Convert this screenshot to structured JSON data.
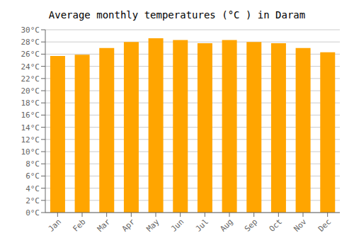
{
  "chart_data": {
    "type": "bar",
    "title": "Average monthly temperatures (°C ) in Daram",
    "categories": [
      "Jan",
      "Feb",
      "Mar",
      "Apr",
      "May",
      "Jun",
      "Jul",
      "Aug",
      "Sep",
      "Oct",
      "Nov",
      "Dec"
    ],
    "values": [
      25.7,
      25.9,
      27.0,
      28.0,
      28.6,
      28.3,
      27.8,
      28.3,
      28.0,
      27.8,
      27.0,
      26.3
    ],
    "color": "#FFA500",
    "ylim": [
      0,
      30
    ],
    "yticks": [
      {
        "value": 0,
        "label": "0°C"
      },
      {
        "value": 2,
        "label": "2°C"
      },
      {
        "value": 4,
        "label": "4°C"
      },
      {
        "value": 6,
        "label": "6°C"
      },
      {
        "value": 8,
        "label": "8°C"
      },
      {
        "value": 10,
        "label": "10°C"
      },
      {
        "value": 12,
        "label": "12°C"
      },
      {
        "value": 14,
        "label": "14°C"
      },
      {
        "value": 16,
        "label": "16°C"
      },
      {
        "value": 18,
        "label": "18°C"
      },
      {
        "value": 20,
        "label": "20°C"
      },
      {
        "value": 22,
        "label": "22°C"
      },
      {
        "value": 24,
        "label": "24°C"
      },
      {
        "value": 26,
        "label": "26°C"
      },
      {
        "value": 28,
        "label": "28°C"
      },
      {
        "value": 30,
        "label": "30°C"
      }
    ],
    "grid": true
  }
}
